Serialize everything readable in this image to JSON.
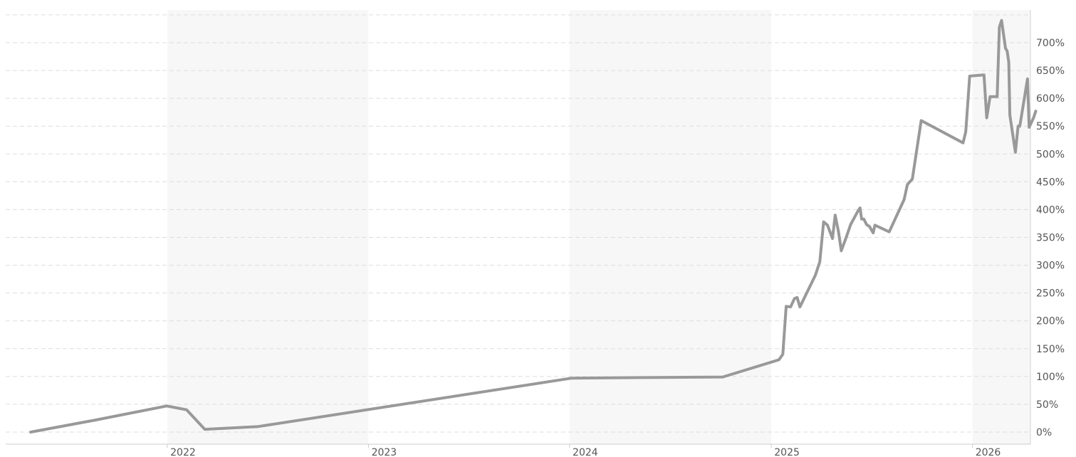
{
  "chart_data": {
    "type": "line",
    "title": "",
    "xlabel": "",
    "ylabel": "",
    "grid": true,
    "legend": "none",
    "ylim": [
      -20,
      750
    ],
    "xlim": [
      "2021-04-15",
      "2026-04-15"
    ],
    "y_ticks": [
      0,
      50,
      100,
      150,
      200,
      250,
      300,
      350,
      400,
      450,
      500,
      550,
      600,
      650,
      700
    ],
    "y_tick_labels": [
      "0%",
      "50%",
      "100%",
      "150%",
      "200%",
      "250%",
      "300%",
      "350%",
      "400%",
      "450%",
      "500%",
      "550%",
      "600%",
      "650%",
      "700%"
    ],
    "x_ticks": [
      "2022-01-01",
      "2023-01-01",
      "2024-01-01",
      "2025-01-01",
      "2026-01-01"
    ],
    "x_tick_labels": [
      "2022",
      "2023",
      "2024",
      "2025",
      "2026"
    ],
    "shaded_bands": [
      [
        "2022-01-01",
        "2023-01-01"
      ],
      [
        "2024-01-01",
        "2025-01-01"
      ],
      [
        "2026-01-01",
        "2026-04-15"
      ]
    ],
    "colors": {
      "line": "#999999",
      "band": "#f7f7f7",
      "grid": "#dddddd",
      "axis": "#cccccc",
      "tick_text": "#555555"
    },
    "series": [
      {
        "values": [
          [
            "2021-04-28",
            0
          ],
          [
            "2021-08-20",
            21
          ],
          [
            "2021-12-31",
            47
          ],
          [
            "2022-02-05",
            40
          ],
          [
            "2022-03-10",
            5
          ],
          [
            "2022-06-15",
            10
          ],
          [
            "2024-01-05",
            97
          ],
          [
            "2024-10-05",
            99
          ],
          [
            "2025-01-15",
            130
          ],
          [
            "2025-01-22",
            140
          ],
          [
            "2025-01-28",
            226
          ],
          [
            "2025-02-05",
            225
          ],
          [
            "2025-02-12",
            240
          ],
          [
            "2025-02-17",
            242
          ],
          [
            "2025-02-22",
            225
          ],
          [
            "2025-03-22",
            282
          ],
          [
            "2025-03-30",
            306
          ],
          [
            "2025-04-06",
            378
          ],
          [
            "2025-04-13",
            372
          ],
          [
            "2025-04-22",
            348
          ],
          [
            "2025-04-27",
            390
          ],
          [
            "2025-05-03",
            360
          ],
          [
            "2025-05-08",
            326
          ],
          [
            "2025-05-17",
            350
          ],
          [
            "2025-05-25",
            373
          ],
          [
            "2025-06-07",
            397
          ],
          [
            "2025-06-11",
            403
          ],
          [
            "2025-06-14",
            383
          ],
          [
            "2025-06-18",
            383
          ],
          [
            "2025-06-23",
            373
          ],
          [
            "2025-06-28",
            370
          ],
          [
            "2025-07-05",
            358
          ],
          [
            "2025-07-08",
            372
          ],
          [
            "2025-08-03",
            360
          ],
          [
            "2025-08-30",
            418
          ],
          [
            "2025-09-05",
            445
          ],
          [
            "2025-09-14",
            455
          ],
          [
            "2025-09-30",
            560
          ],
          [
            "2025-12-15",
            520
          ],
          [
            "2025-12-20",
            540
          ],
          [
            "2025-12-27",
            640
          ],
          [
            "2026-01-22",
            642
          ],
          [
            "2026-01-27",
            565
          ],
          [
            "2026-02-02",
            603
          ],
          [
            "2026-02-15",
            603
          ],
          [
            "2026-02-19",
            728
          ],
          [
            "2026-02-23",
            740
          ],
          [
            "2026-03-02",
            690
          ],
          [
            "2026-03-05",
            685
          ],
          [
            "2026-03-08",
            665
          ],
          [
            "2026-03-10",
            570
          ],
          [
            "2026-03-20",
            503
          ],
          [
            "2026-03-25",
            550
          ],
          [
            "2026-03-28",
            550
          ],
          [
            "2026-04-11",
            635
          ],
          [
            "2026-04-14",
            548
          ],
          [
            "2026-04-22",
            565
          ],
          [
            "2026-04-26",
            577
          ]
        ]
      }
    ]
  }
}
